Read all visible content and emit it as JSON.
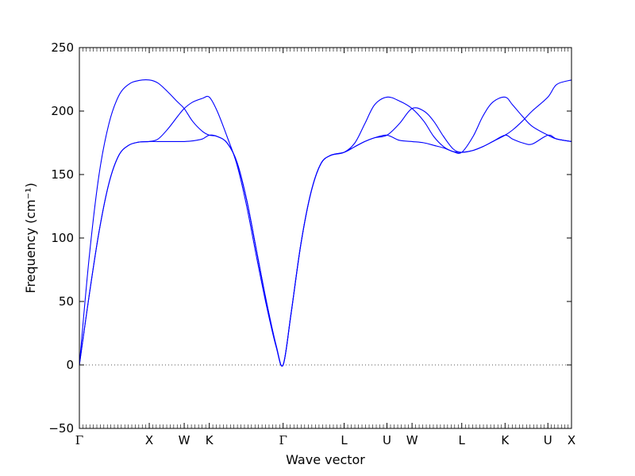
{
  "chart_data": {
    "type": "line",
    "title": "",
    "xlabel": "Wave vector",
    "ylabel": "Frequency (cm⁻¹)",
    "ylim": [
      -50,
      250
    ],
    "yticks": [
      -50,
      0,
      50,
      100,
      150,
      200,
      250
    ],
    "xlim": [
      0,
      100
    ],
    "grid": false,
    "zero_line": {
      "y": 0,
      "style": "dotted"
    },
    "high_symmetry_points": [
      {
        "label": "Γ",
        "x": 0
      },
      {
        "label": "X",
        "x": 14.2
      },
      {
        "label": "W",
        "x": 21.3
      },
      {
        "label": "K",
        "x": 26.4
      },
      {
        "label": "Γ",
        "x": 41.4
      },
      {
        "label": "L",
        "x": 53.8
      },
      {
        "label": "U",
        "x": 62.5
      },
      {
        "label": "W",
        "x": 67.6
      },
      {
        "label": "L",
        "x": 77.7
      },
      {
        "label": "K",
        "x": 86.5
      },
      {
        "label": "U",
        "x": 95.2
      },
      {
        "label": "X",
        "x": 100
      }
    ],
    "color": "#0000ff",
    "series": [
      {
        "x": [
          0,
          2,
          4,
          6,
          8,
          10,
          12,
          14.2,
          16,
          18,
          20,
          21.3,
          23,
          25,
          26.4,
          28,
          30,
          32,
          34,
          36,
          38,
          40,
          41.4,
          43,
          45,
          47,
          49,
          51,
          53.8,
          56,
          58,
          60,
          62.5,
          65,
          67.6,
          70,
          72,
          74,
          76,
          77.7,
          80,
          82,
          84,
          86.5,
          88,
          90,
          92,
          95.2,
          97,
          100
        ],
        "y": [
          0,
          55,
          105,
          143,
          165,
          173,
          175.5,
          176,
          176,
          176,
          176,
          176,
          176.5,
          178,
          181,
          180,
          175,
          160,
          130,
          90,
          50,
          15,
          0,
          40,
          95,
          135,
          158,
          165,
          167.5,
          172,
          176,
          179,
          181,
          177,
          176,
          175,
          173,
          171,
          168,
          167.5,
          169,
          172,
          176,
          181,
          178,
          175,
          174,
          181,
          178,
          176
        ]
      },
      {
        "x": [
          0,
          2,
          4,
          6,
          8,
          10,
          12,
          14.2,
          16,
          18,
          20,
          21.3,
          23,
          25,
          26.4,
          28,
          30,
          32,
          34,
          36,
          38,
          40,
          41.4,
          43,
          45,
          47,
          49,
          51,
          53.8,
          56,
          58,
          60,
          62.5,
          65,
          67.6,
          70,
          72,
          74,
          76,
          77.7,
          80,
          82,
          84,
          86.5,
          88,
          90,
          92,
          95.2,
          97,
          100
        ],
        "y": [
          0,
          55,
          105,
          143,
          165,
          173,
          175.5,
          176,
          178,
          186,
          196,
          202,
          207,
          210,
          211,
          200,
          180,
          158,
          125,
          85,
          47,
          14,
          0,
          40,
          95,
          135,
          158,
          165,
          167.5,
          175,
          190,
          205,
          211,
          208,
          202,
          192,
          180,
          172,
          168,
          167.5,
          180,
          196,
          207,
          211,
          205,
          196,
          188,
          181,
          178,
          176
        ]
      },
      {
        "x": [
          0,
          2,
          4,
          6,
          8,
          10,
          12,
          14.2,
          16,
          18,
          20,
          21.3,
          23,
          25,
          26.4,
          28,
          30,
          32,
          34,
          36,
          38,
          40,
          41.4,
          43,
          45,
          47,
          49,
          51,
          53.8,
          56,
          58,
          60,
          62.5,
          65,
          67.6,
          70,
          72,
          74,
          76,
          77.7,
          80,
          82,
          84,
          86.5,
          88,
          90,
          92,
          95.2,
          97,
          100
        ],
        "y": [
          0,
          85,
          150,
          190,
          212,
          221,
          224,
          224.5,
          222,
          215,
          207,
          202,
          192,
          184,
          181,
          180,
          175,
          160,
          130,
          90,
          50,
          15,
          0,
          40,
          95,
          135,
          158,
          165,
          167.5,
          172,
          176,
          179,
          181,
          190,
          202,
          200,
          192,
          180,
          170,
          167.5,
          169,
          172,
          176,
          181,
          185,
          192,
          200,
          211,
          221,
          224.5
        ]
      }
    ]
  }
}
